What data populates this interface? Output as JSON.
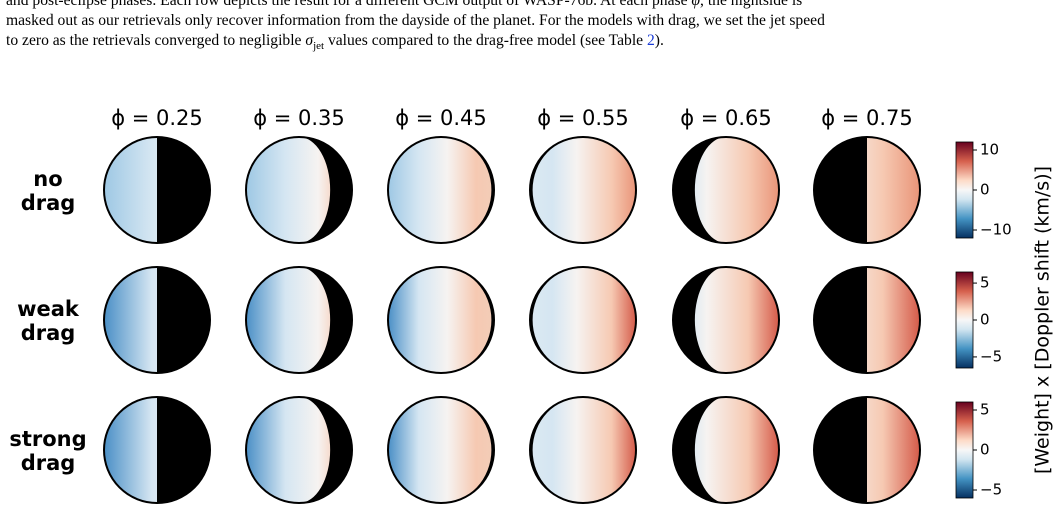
{
  "caption": {
    "lines": [
      [
        "and post-eclipse phases. Each row depicts the result for a different GCM output of WASP-76b. At each phase ",
        "φ",
        ", the nightside is"
      ],
      [
        "masked out as our retrievals only recover information from the dayside of the planet. For the models with drag, we set the jet speed"
      ],
      [
        "to zero as the retrievals converged to negligible ",
        "σ",
        "jet",
        " values compared to the drag-free model (see Table ",
        "2",
        ")."
      ]
    ]
  },
  "figure": {
    "phases": [
      {
        "value": 0.25,
        "label": "ϕ = 0.25"
      },
      {
        "value": 0.35,
        "label": "ϕ = 0.35"
      },
      {
        "value": 0.45,
        "label": "ϕ = 0.45"
      },
      {
        "value": 0.55,
        "label": "ϕ = 0.55"
      },
      {
        "value": 0.65,
        "label": "ϕ = 0.65"
      },
      {
        "value": 0.75,
        "label": "ϕ = 0.75"
      }
    ],
    "rows": [
      {
        "label": [
          "no",
          "drag"
        ],
        "colorbar": {
          "lim": [
            -12,
            12
          ],
          "ticks": [
            {
              "value": 10,
              "label": "10"
            },
            {
              "value": 0,
              "label": "0"
            },
            {
              "value": -10,
              "label": "−10"
            }
          ]
        }
      },
      {
        "label": [
          "weak",
          "drag"
        ],
        "colorbar": {
          "lim": [
            -6.5,
            6.5
          ],
          "ticks": [
            {
              "value": 5,
              "label": "5"
            },
            {
              "value": 0,
              "label": "0"
            },
            {
              "value": -5,
              "label": "−5"
            }
          ]
        }
      },
      {
        "label": [
          "strong",
          "drag"
        ],
        "colorbar": {
          "lim": [
            -6,
            6
          ],
          "ticks": [
            {
              "value": 5,
              "label": "5"
            },
            {
              "value": 0,
              "label": "0"
            },
            {
              "value": -5,
              "label": "−5"
            }
          ]
        }
      }
    ],
    "colorbar_label": "[Weight] x [Doppler shift (km/s)]"
  }
}
